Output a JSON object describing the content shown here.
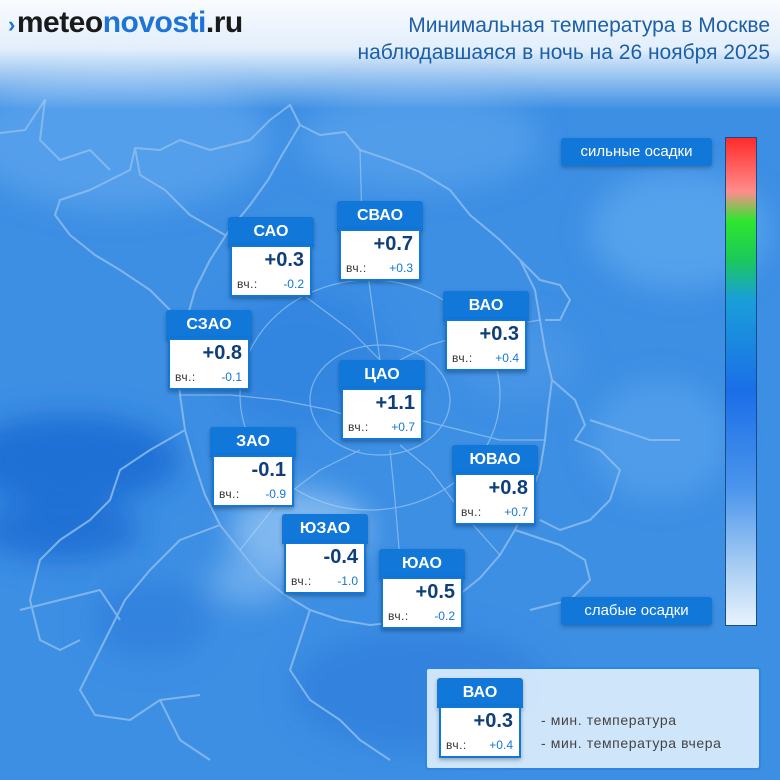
{
  "header": {
    "logo_part1": "meteo",
    "logo_part2": "novosti",
    "logo_part3": ".ru",
    "title_line1": "Минимальная температура в Москве",
    "title_line2": "наблюдавшаяся в ночь на 26 ноября 2025"
  },
  "districts": [
    {
      "name": "САО",
      "temp": "+0.3",
      "yesterday_label": "вч.:",
      "yesterday": "-0.2"
    },
    {
      "name": "СВАО",
      "temp": "+0.7",
      "yesterday_label": "вч.:",
      "yesterday": "+0.3"
    },
    {
      "name": "ВАО",
      "temp": "+0.3",
      "yesterday_label": "вч.:",
      "yesterday": "+0.4"
    },
    {
      "name": "СЗАО",
      "temp": "+0.8",
      "yesterday_label": "вч.:",
      "yesterday": "-0.1"
    },
    {
      "name": "ЦАО",
      "temp": "+1.1",
      "yesterday_label": "вч.:",
      "yesterday": "+0.7"
    },
    {
      "name": "ЗАО",
      "temp": "-0.1",
      "yesterday_label": "вч.:",
      "yesterday": "-0.9"
    },
    {
      "name": "ЮВАО",
      "temp": "+0.8",
      "yesterday_label": "вч.:",
      "yesterday": "+0.7"
    },
    {
      "name": "ЮЗАО",
      "temp": "-0.4",
      "yesterday_label": "вч.:",
      "yesterday": "-1.0"
    },
    {
      "name": "ЮАО",
      "temp": "+0.5",
      "yesterday_label": "вч.:",
      "yesterday": "-0.2"
    }
  ],
  "scale": {
    "top_label": "сильные осадки",
    "bottom_label": "слабые осадки",
    "colors": [
      "#ff2b2b",
      "#2ee62e",
      "#1b6ee8",
      "#e8f3fd"
    ]
  },
  "legend": {
    "name": "ВАО",
    "temp": "+0.3",
    "yesterday_label": "вч.:",
    "yesterday": "+0.4",
    "desc_min": "- мин. температура",
    "desc_yesterday": "- мин. температура вчера"
  }
}
